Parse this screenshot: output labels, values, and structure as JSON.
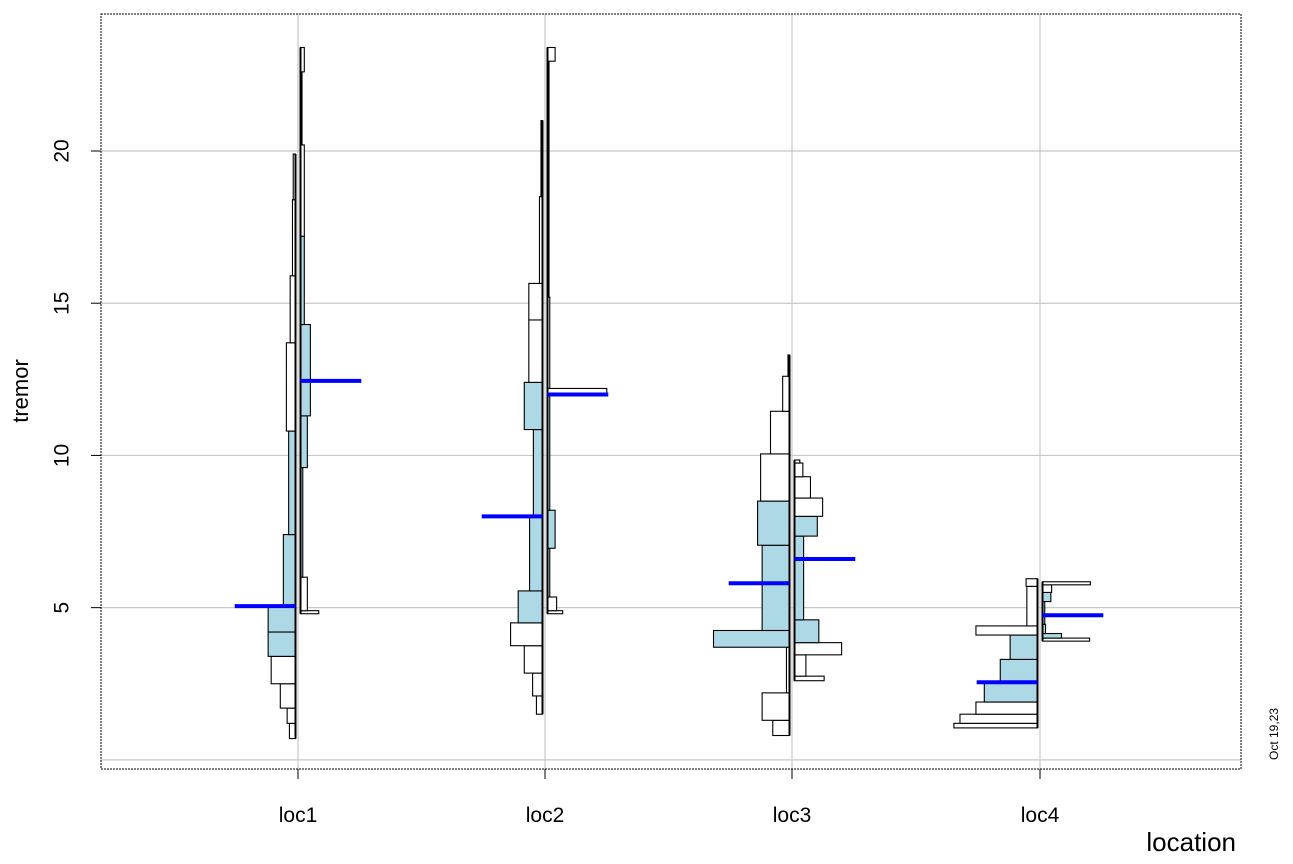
{
  "chart_data": {
    "type": "histogram",
    "xlabel": "location",
    "ylabel": "tremor",
    "stamp": "Oct 19,23",
    "categories": [
      "loc1",
      "loc2",
      "loc3",
      "loc4"
    ],
    "ylim": [
      -0.3,
      24.5
    ],
    "yticks": [
      5,
      10,
      15,
      20
    ],
    "grid": true,
    "grid_y": [
      0,
      5,
      10,
      15,
      20
    ],
    "colors": {
      "fill": "#add8e6",
      "mean": "#0000ff",
      "grid": "#c8c8c8",
      "outline": "#000000"
    },
    "groups": [
      {
        "name": "loc1",
        "left": {
          "mean": 5.05,
          "bins": [
            {
              "y0": 0.7,
              "y1": 1.2,
              "w": 0.4,
              "shaded": false
            },
            {
              "y0": 1.2,
              "y1": 1.7,
              "w": 0.55,
              "shaded": false
            },
            {
              "y0": 1.7,
              "y1": 2.5,
              "w": 1.0,
              "shaded": false
            },
            {
              "y0": 2.5,
              "y1": 3.4,
              "w": 1.6,
              "shaded": false
            },
            {
              "y0": 3.4,
              "y1": 4.2,
              "w": 1.8,
              "shaded": true
            },
            {
              "y0": 4.2,
              "y1": 5.05,
              "w": 1.8,
              "shaded": true
            },
            {
              "y0": 5.05,
              "y1": 7.4,
              "w": 0.8,
              "shaded": true
            },
            {
              "y0": 7.4,
              "y1": 10.8,
              "w": 0.45,
              "shaded": true
            },
            {
              "y0": 10.8,
              "y1": 13.7,
              "w": 0.6,
              "shaded": false
            },
            {
              "y0": 13.7,
              "y1": 15.9,
              "w": 0.35,
              "shaded": false
            },
            {
              "y0": 15.9,
              "y1": 18.4,
              "w": 0.2,
              "shaded": false
            },
            {
              "y0": 18.4,
              "y1": 19.9,
              "w": 0.15,
              "shaded": false
            }
          ]
        },
        "right": {
          "mean": 12.45,
          "bins": [
            {
              "y0": 4.8,
              "y1": 4.9,
              "w": 1.2,
              "shaded": false
            },
            {
              "y0": 4.9,
              "y1": 6.0,
              "w": 0.45,
              "shaded": false
            },
            {
              "y0": 6.0,
              "y1": 9.6,
              "w": 0.15,
              "shaded": true
            },
            {
              "y0": 9.6,
              "y1": 11.3,
              "w": 0.45,
              "shaded": true
            },
            {
              "y0": 11.3,
              "y1": 14.3,
              "w": 0.65,
              "shaded": true
            },
            {
              "y0": 14.3,
              "y1": 17.2,
              "w": 0.25,
              "shaded": true
            },
            {
              "y0": 17.2,
              "y1": 20.2,
              "w": 0.25,
              "shaded": false
            },
            {
              "y0": 20.2,
              "y1": 22.6,
              "w": 0.1,
              "shaded": false
            },
            {
              "y0": 22.6,
              "y1": 23.4,
              "w": 0.25,
              "shaded": false
            }
          ]
        }
      },
      {
        "name": "loc2",
        "left": {
          "mean": 8.0,
          "bins": [
            {
              "y0": 1.5,
              "y1": 2.1,
              "w": 0.4,
              "shaded": false
            },
            {
              "y0": 2.1,
              "y1": 2.85,
              "w": 0.65,
              "shaded": false
            },
            {
              "y0": 2.85,
              "y1": 3.75,
              "w": 1.2,
              "shaded": false
            },
            {
              "y0": 3.75,
              "y1": 4.5,
              "w": 2.1,
              "shaded": false
            },
            {
              "y0": 4.5,
              "y1": 5.55,
              "w": 1.6,
              "shaded": true
            },
            {
              "y0": 5.55,
              "y1": 8.0,
              "w": 0.85,
              "shaded": true
            },
            {
              "y0": 8.0,
              "y1": 10.85,
              "w": 0.6,
              "shaded": true
            },
            {
              "y0": 10.85,
              "y1": 12.4,
              "w": 1.2,
              "shaded": true
            },
            {
              "y0": 12.4,
              "y1": 14.45,
              "w": 0.9,
              "shaded": false
            },
            {
              "y0": 14.45,
              "y1": 15.65,
              "w": 0.9,
              "shaded": false
            },
            {
              "y0": 15.65,
              "y1": 18.5,
              "w": 0.2,
              "shaded": false
            },
            {
              "y0": 18.5,
              "y1": 21.0,
              "w": 0.1,
              "shaded": false
            }
          ]
        },
        "right": {
          "mean": 12.0,
          "bins": [
            {
              "y0": 4.8,
              "y1": 4.9,
              "w": 1.0,
              "shaded": false
            },
            {
              "y0": 4.9,
              "y1": 5.35,
              "w": 0.6,
              "shaded": false
            },
            {
              "y0": 5.35,
              "y1": 6.95,
              "w": 0.15,
              "shaded": true
            },
            {
              "y0": 6.95,
              "y1": 8.2,
              "w": 0.5,
              "shaded": true
            },
            {
              "y0": 8.2,
              "y1": 12.0,
              "w": 0.15,
              "shaded": true
            },
            {
              "y0": 12.0,
              "y1": 12.2,
              "w": 3.9,
              "shaded": false
            },
            {
              "y0": 12.2,
              "y1": 15.2,
              "w": 0.15,
              "shaded": false
            },
            {
              "y0": 15.2,
              "y1": 22.95,
              "w": 0.1,
              "shaded": false
            },
            {
              "y0": 22.95,
              "y1": 23.4,
              "w": 0.5,
              "shaded": false
            }
          ]
        }
      },
      {
        "name": "loc3",
        "left": {
          "mean": 5.8,
          "bins": [
            {
              "y0": 0.8,
              "y1": 1.3,
              "w": 1.1,
              "shaded": false
            },
            {
              "y0": 1.3,
              "y1": 2.2,
              "w": 1.8,
              "shaded": false
            },
            {
              "y0": 2.2,
              "y1": 3.7,
              "w": 0.2,
              "shaded": false
            },
            {
              "y0": 3.7,
              "y1": 4.25,
              "w": 5.0,
              "shaded": true
            },
            {
              "y0": 4.25,
              "y1": 7.05,
              "w": 1.8,
              "shaded": true
            },
            {
              "y0": 7.05,
              "y1": 8.5,
              "w": 2.1,
              "shaded": true
            },
            {
              "y0": 8.5,
              "y1": 10.05,
              "w": 1.9,
              "shaded": false
            },
            {
              "y0": 10.05,
              "y1": 11.45,
              "w": 1.25,
              "shaded": false
            },
            {
              "y0": 11.45,
              "y1": 12.6,
              "w": 0.45,
              "shaded": false
            },
            {
              "y0": 12.6,
              "y1": 13.3,
              "w": 0.1,
              "shaded": false
            }
          ]
        },
        "right": {
          "mean": 6.6,
          "bins": [
            {
              "y0": 2.6,
              "y1": 2.75,
              "w": 1.95,
              "shaded": false
            },
            {
              "y0": 2.75,
              "y1": 3.45,
              "w": 0.75,
              "shaded": false
            },
            {
              "y0": 3.45,
              "y1": 3.85,
              "w": 3.1,
              "shaded": false
            },
            {
              "y0": 3.85,
              "y1": 4.6,
              "w": 1.6,
              "shaded": true
            },
            {
              "y0": 4.6,
              "y1": 7.35,
              "w": 0.6,
              "shaded": true
            },
            {
              "y0": 7.35,
              "y1": 8.0,
              "w": 1.5,
              "shaded": true
            },
            {
              "y0": 8.0,
              "y1": 8.6,
              "w": 1.85,
              "shaded": false
            },
            {
              "y0": 8.6,
              "y1": 9.3,
              "w": 1.05,
              "shaded": false
            },
            {
              "y0": 9.3,
              "y1": 9.75,
              "w": 0.55,
              "shaded": false
            },
            {
              "y0": 9.75,
              "y1": 9.85,
              "w": 0.35,
              "shaded": false
            }
          ]
        }
      },
      {
        "name": "loc4",
        "left": {
          "mean": 2.55,
          "bins": [
            {
              "y0": 1.05,
              "y1": 1.2,
              "w": 5.5,
              "shaded": false
            },
            {
              "y0": 1.2,
              "y1": 1.5,
              "w": 5.1,
              "shaded": false
            },
            {
              "y0": 1.5,
              "y1": 1.9,
              "w": 4.05,
              "shaded": false
            },
            {
              "y0": 1.9,
              "y1": 2.55,
              "w": 3.5,
              "shaded": true
            },
            {
              "y0": 2.55,
              "y1": 3.3,
              "w": 2.45,
              "shaded": true
            },
            {
              "y0": 3.3,
              "y1": 4.1,
              "w": 1.8,
              "shaded": true
            },
            {
              "y0": 4.1,
              "y1": 4.4,
              "w": 4.05,
              "shaded": false
            },
            {
              "y0": 4.4,
              "y1": 5.7,
              "w": 0.7,
              "shaded": false
            },
            {
              "y0": 5.7,
              "y1": 5.95,
              "w": 0.75,
              "shaded": false
            }
          ]
        },
        "right": {
          "mean": 4.75,
          "bins": [
            {
              "y0": 3.9,
              "y1": 4.0,
              "w": 3.1,
              "shaded": false
            },
            {
              "y0": 4.0,
              "y1": 4.15,
              "w": 1.25,
              "shaded": true
            },
            {
              "y0": 4.15,
              "y1": 4.45,
              "w": 0.2,
              "shaded": true
            },
            {
              "y0": 4.45,
              "y1": 5.2,
              "w": 0.15,
              "shaded": true
            },
            {
              "y0": 5.2,
              "y1": 5.5,
              "w": 0.55,
              "shaded": true
            },
            {
              "y0": 5.5,
              "y1": 5.75,
              "w": 0.6,
              "shaded": false
            },
            {
              "y0": 5.75,
              "y1": 5.85,
              "w": 3.15,
              "shaded": false
            }
          ]
        }
      }
    ]
  }
}
